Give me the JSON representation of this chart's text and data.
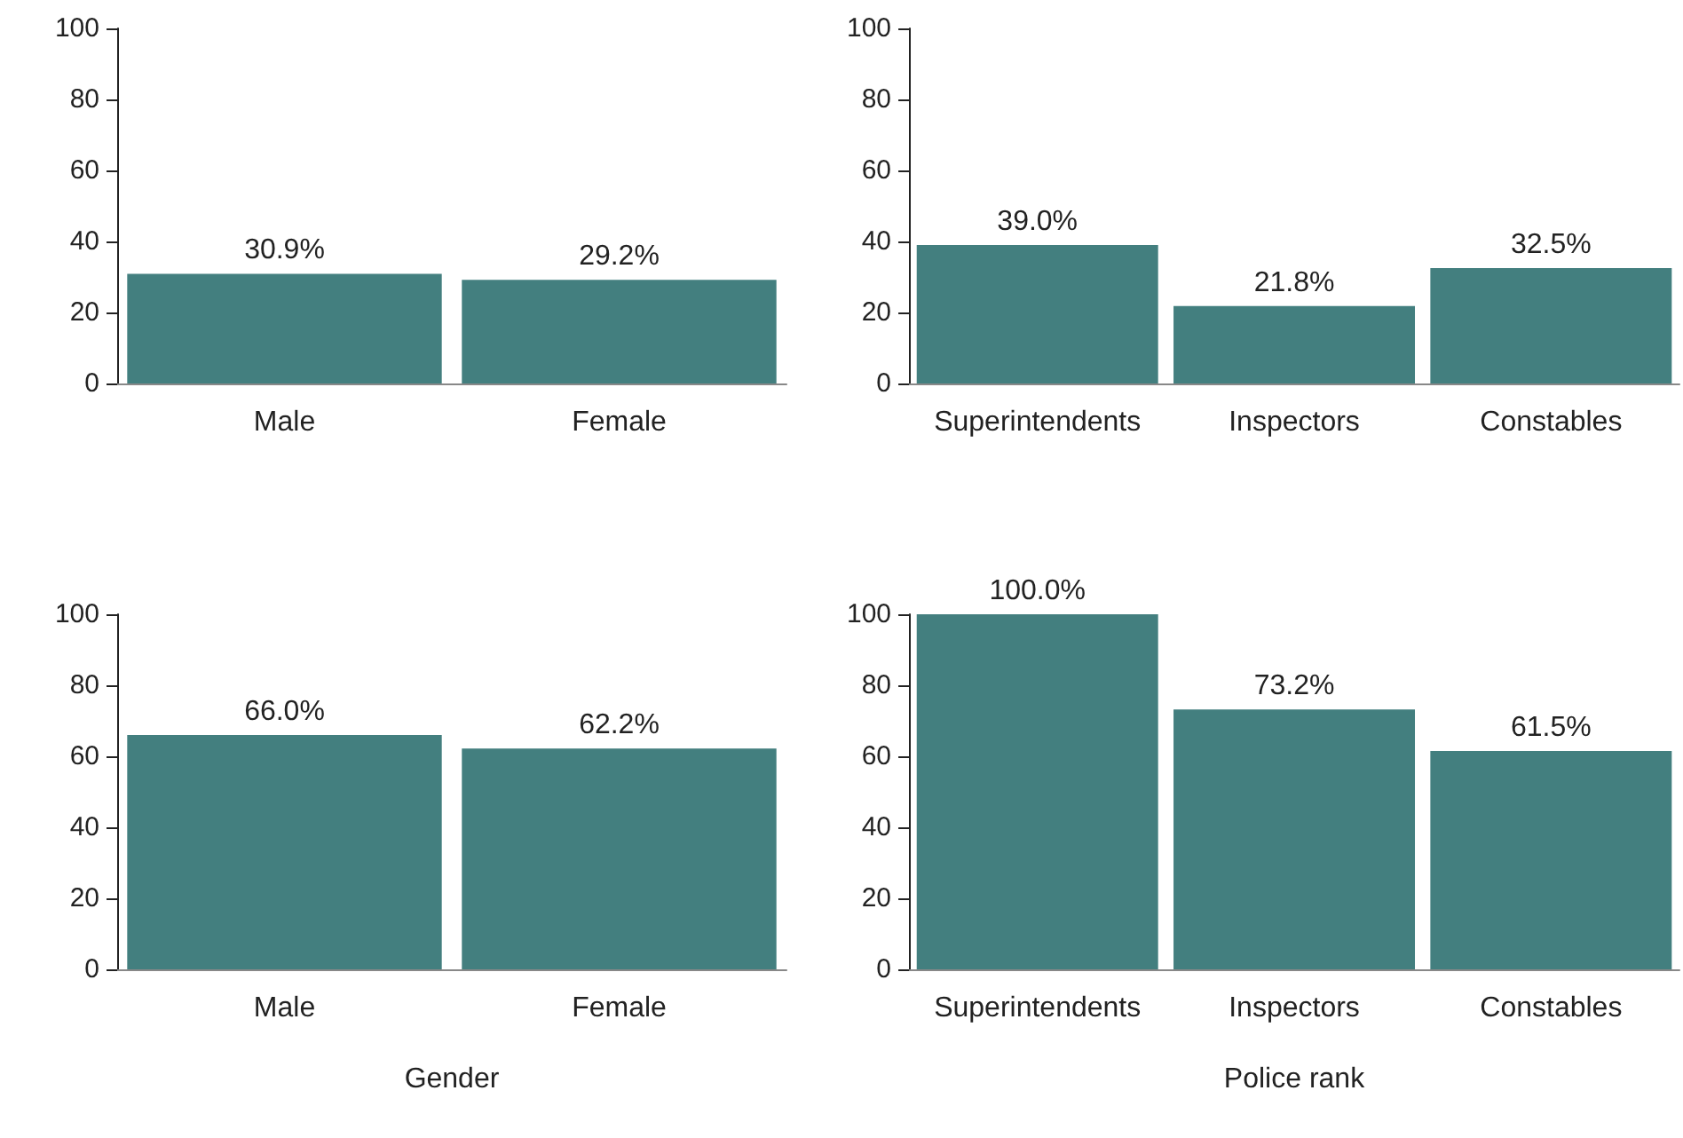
{
  "chart_data": [
    {
      "type": "bar",
      "categories": [
        "Male",
        "Female"
      ],
      "values": [
        30.9,
        29.2
      ],
      "value_labels": [
        "30.9%",
        "29.2%"
      ],
      "color": "#437f7f",
      "ylim": [
        0,
        100
      ],
      "yticks": [
        0,
        20,
        40,
        60,
        80,
        100
      ],
      "grid": false
    },
    {
      "type": "bar",
      "categories": [
        "Superintendents",
        "Inspectors",
        "Constables"
      ],
      "values": [
        39.0,
        21.8,
        32.5
      ],
      "value_labels": [
        "39.0%",
        "21.8%",
        "32.5%"
      ],
      "color": "#437f7f",
      "ylim": [
        0,
        100
      ],
      "yticks": [
        0,
        20,
        40,
        60,
        80,
        100
      ],
      "grid": false
    },
    {
      "type": "bar",
      "xlabel": "Gender",
      "categories": [
        "Male",
        "Female"
      ],
      "values": [
        66.0,
        62.2
      ],
      "value_labels": [
        "66.0%",
        "62.2%"
      ],
      "color": "#437f7f",
      "ylim": [
        0,
        100
      ],
      "yticks": [
        0,
        20,
        40,
        60,
        80,
        100
      ],
      "grid": false
    },
    {
      "type": "bar",
      "xlabel": "Police rank",
      "categories": [
        "Superintendents",
        "Inspectors",
        "Constables"
      ],
      "values": [
        100.0,
        73.2,
        61.5
      ],
      "value_labels": [
        "100.0%",
        "73.2%",
        "61.5%"
      ],
      "color": "#437f7f",
      "ylim": [
        0,
        100
      ],
      "yticks": [
        0,
        20,
        40,
        60,
        80,
        100
      ],
      "grid": false
    }
  ]
}
